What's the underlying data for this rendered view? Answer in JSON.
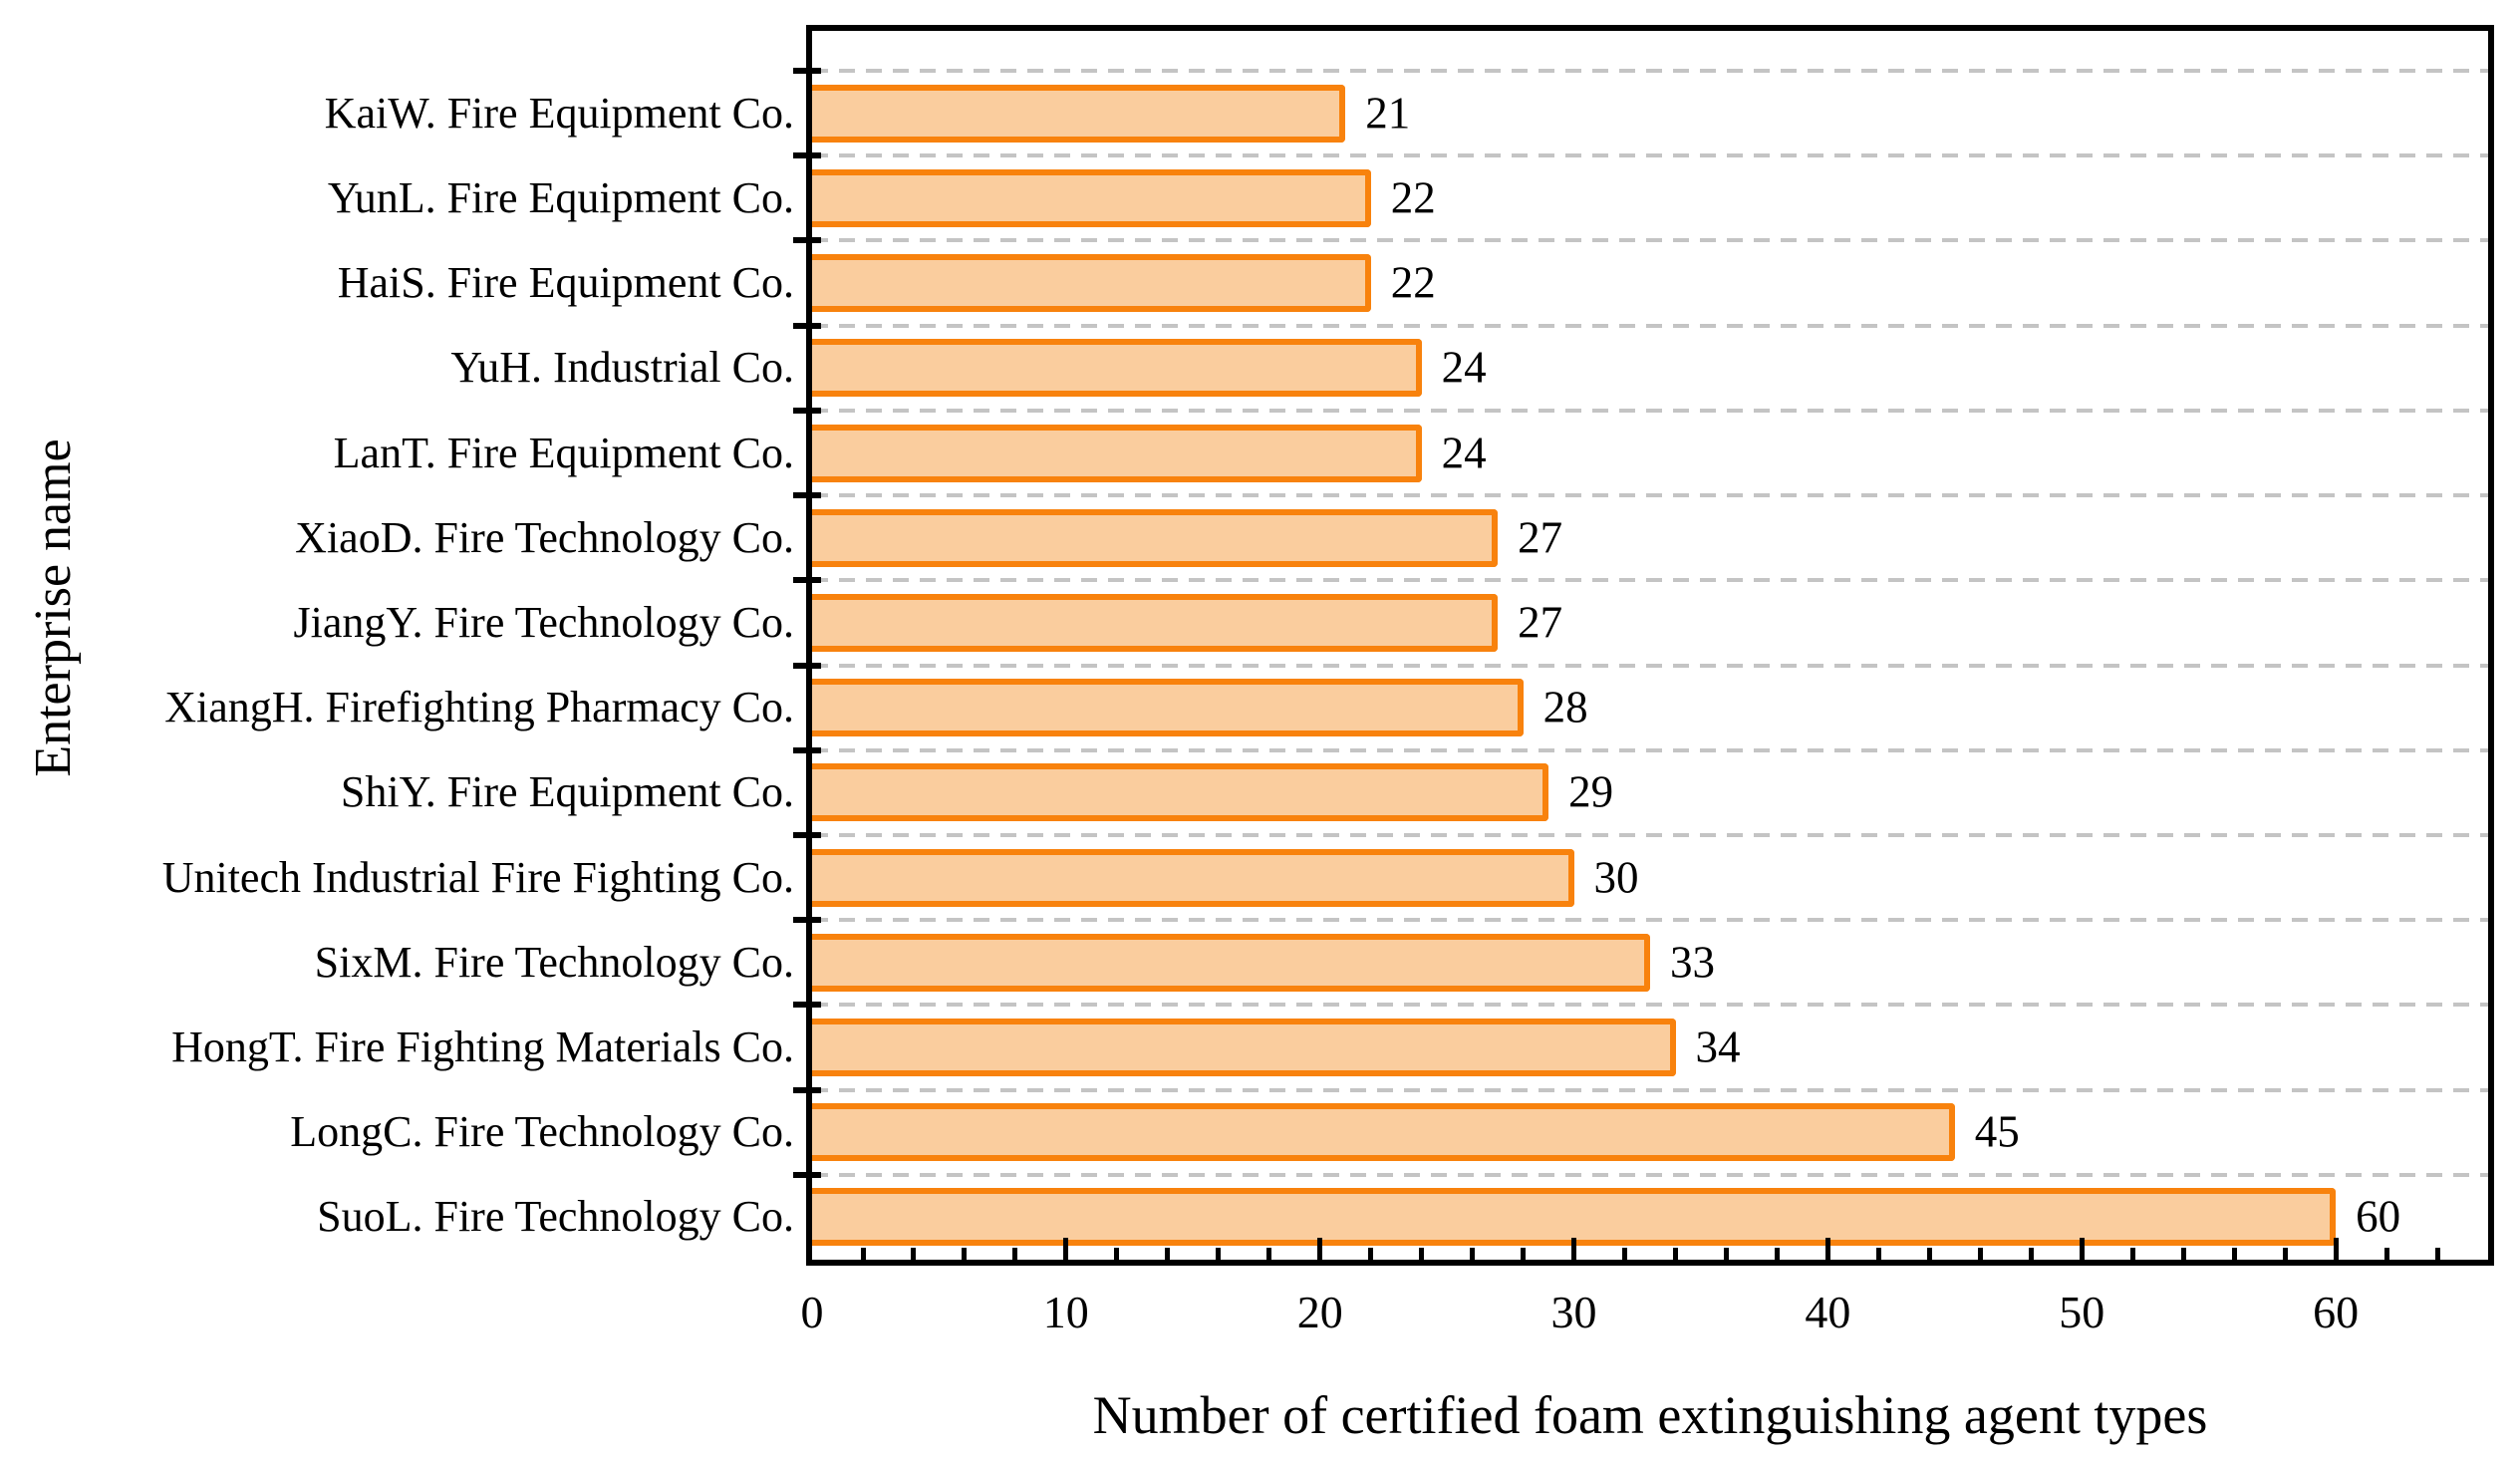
{
  "chart_data": {
    "type": "bar",
    "orientation": "horizontal",
    "categories": [
      "KaiW. Fire Equipment Co.",
      "YunL. Fire Equipment Co.",
      "HaiS. Fire Equipment Co.",
      "YuH. Industrial Co.",
      "LanT. Fire Equipment Co.",
      "XiaoD. Fire Technology Co.",
      "JiangY. Fire Technology Co.",
      "XiangH. Firefighting Pharmacy Co.",
      "ShiY. Fire Equipment Co.",
      "Unitech Industrial Fire Fighting Co.",
      "SixM. Fire Technology Co.",
      "HongT. Fire Fighting Materials Co.",
      "LongC. Fire Technology Co.",
      "SuoL. Fire Technology Co."
    ],
    "values": [
      21,
      22,
      22,
      24,
      24,
      27,
      27,
      28,
      29,
      30,
      33,
      34,
      45,
      60
    ],
    "xlabel": "Number of certified foam extinguishing agent types",
    "ylabel": "Enterprise name",
    "xlim": [
      0,
      66
    ],
    "xticks_major": [
      0,
      10,
      20,
      30,
      40,
      50,
      60
    ],
    "xtick_labels": [
      "0",
      "10",
      "20",
      "30",
      "40",
      "50",
      "60"
    ],
    "xtick_minor_step": 2,
    "grid": "horizontal dashed lines at category boundaries",
    "legend_position": "none",
    "colors": {
      "bar_fill": "#facd9e",
      "bar_edge": "#f8820d",
      "grid_line": "#c4c4c4",
      "axis": "#000000",
      "text": "#000000"
    }
  }
}
